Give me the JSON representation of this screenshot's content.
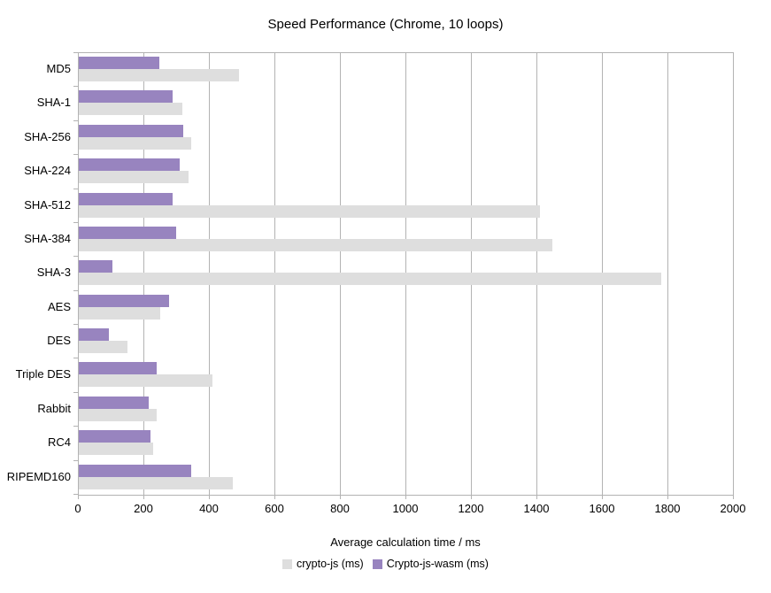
{
  "title": "Speed Performance (Chrome, 10 loops)",
  "chart_data": {
    "type": "bar",
    "orientation": "horizontal",
    "title": "Speed Performance (Chrome, 10 loops)",
    "xlabel": "Average calculation time / ms",
    "ylabel": "",
    "xlim": [
      0,
      2000
    ],
    "x_ticks": [
      0,
      200,
      400,
      600,
      800,
      1000,
      1200,
      1400,
      1600,
      1800,
      2000
    ],
    "grid": true,
    "legend_position": "bottom",
    "categories": [
      "MD5",
      "SHA-1",
      "SHA-256",
      "SHA-224",
      "SHA-512",
      "SHA-384",
      "SHA-3",
      "AES",
      "DES",
      "Triple DES",
      "Rabbit",
      "RC4",
      "RIPEMD160"
    ],
    "series": [
      {
        "name": "crypto-js (ms)",
        "color": "#dedede",
        "values": [
          490,
          317,
          343,
          335,
          1408,
          1446,
          1778,
          249,
          148,
          408,
          237,
          227,
          471
        ]
      },
      {
        "name": "Crypto-js-wasm (ms)",
        "color": "#9884bf",
        "values": [
          246,
          287,
          318,
          308,
          286,
          297,
          104,
          277,
          93,
          238,
          214,
          219,
          344
        ]
      }
    ],
    "note_draw_order": "second series drawn as top bar of each category pair"
  },
  "colors": {
    "background": "#ffffff",
    "axis": "#b3b3b3",
    "grid": "#b3b3b3",
    "text": "#000000",
    "series_cryptojs": "#dedede",
    "series_wasm": "#9884bf"
  }
}
